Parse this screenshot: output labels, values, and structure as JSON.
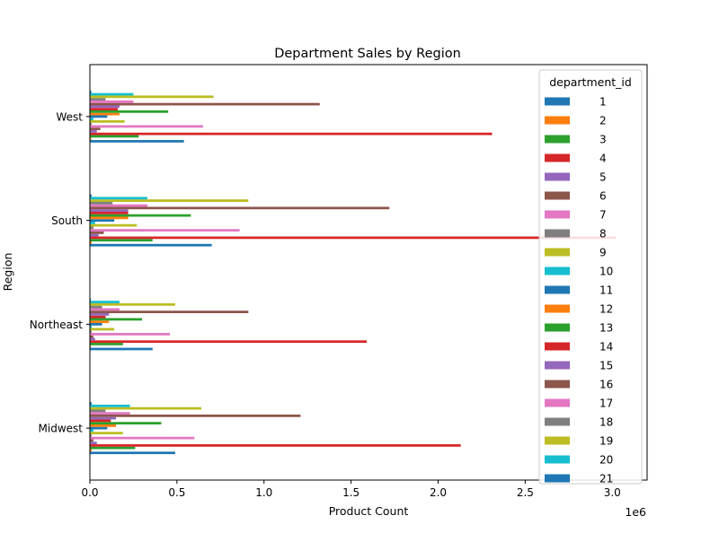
{
  "chart_data": {
    "type": "bar",
    "orientation": "horizontal",
    "title": "Department Sales by Region",
    "xlabel": "Product Count",
    "ylabel": "Region",
    "x_offset_label": "1e6",
    "xlim": [
      0,
      3.2
    ],
    "x_ticks": [
      0,
      0.5,
      1.0,
      1.5,
      2.0,
      2.5,
      3.0
    ],
    "x_tick_labels": [
      "0.0",
      "0.5",
      "1.0",
      "1.5",
      "2.0",
      "2.5",
      "3.0"
    ],
    "categories": [
      "Midwest",
      "Northeast",
      "South",
      "West"
    ],
    "legend_title": "department_id",
    "legend_position": "upper-right",
    "grid": false,
    "series": [
      {
        "name": "1",
        "color": "#1f77b4",
        "values": [
          0.49,
          0.36,
          0.7,
          0.54
        ]
      },
      {
        "name": "2",
        "color": "#ff7f0e",
        "values": [
          0.01,
          0.005,
          0.01,
          0.008
        ]
      },
      {
        "name": "3",
        "color": "#2ca02c",
        "values": [
          0.26,
          0.19,
          0.36,
          0.28
        ]
      },
      {
        "name": "4",
        "color": "#d62728",
        "values": [
          2.13,
          1.59,
          3.02,
          2.31
        ]
      },
      {
        "name": "5",
        "color": "#9467bd",
        "values": [
          0.04,
          0.03,
          0.05,
          0.04
        ]
      },
      {
        "name": "6",
        "color": "#8c564b",
        "values": [
          0.02,
          0.02,
          0.08,
          0.06
        ]
      },
      {
        "name": "7",
        "color": "#e377c2",
        "values": [
          0.6,
          0.46,
          0.86,
          0.65
        ]
      },
      {
        "name": "8",
        "color": "#7f7f7f",
        "values": [
          0.01,
          0.01,
          0.02,
          0.01
        ]
      },
      {
        "name": "9",
        "color": "#bcbd22",
        "values": [
          0.19,
          0.14,
          0.27,
          0.2
        ]
      },
      {
        "name": "10",
        "color": "#17becf",
        "values": [
          0.02,
          0.01,
          0.03,
          0.02
        ]
      },
      {
        "name": "11",
        "color": "#1f77b4",
        "values": [
          0.1,
          0.07,
          0.14,
          0.1
        ]
      },
      {
        "name": "12",
        "color": "#ff7f0e",
        "values": [
          0.15,
          0.11,
          0.22,
          0.17
        ]
      },
      {
        "name": "13",
        "color": "#2ca02c",
        "values": [
          0.41,
          0.3,
          0.58,
          0.45
        ]
      },
      {
        "name": "14",
        "color": "#d62728",
        "values": [
          0.12,
          0.09,
          0.22,
          0.16
        ]
      },
      {
        "name": "15",
        "color": "#9467bd",
        "values": [
          0.15,
          0.11,
          0.22,
          0.17
        ]
      },
      {
        "name": "16",
        "color": "#8c564b",
        "values": [
          1.21,
          0.91,
          1.72,
          1.32
        ]
      },
      {
        "name": "17",
        "color": "#e377c2",
        "values": [
          0.23,
          0.17,
          0.33,
          0.25
        ]
      },
      {
        "name": "18",
        "color": "#7f7f7f",
        "values": [
          0.09,
          0.07,
          0.13,
          0.09
        ]
      },
      {
        "name": "19",
        "color": "#bcbd22",
        "values": [
          0.64,
          0.49,
          0.91,
          0.71
        ]
      },
      {
        "name": "20",
        "color": "#17becf",
        "values": [
          0.23,
          0.17,
          0.33,
          0.25
        ]
      },
      {
        "name": "21",
        "color": "#1f77b4",
        "values": [
          0.01,
          0.005,
          0.01,
          0.008
        ]
      }
    ]
  }
}
